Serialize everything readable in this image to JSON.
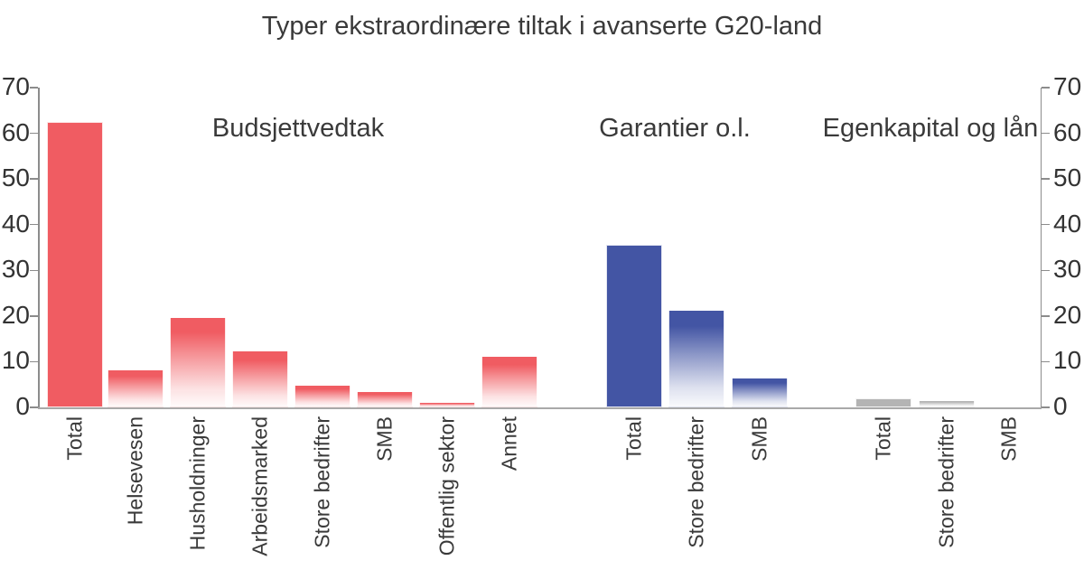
{
  "chart_data": {
    "type": "bar",
    "title": "Typer ekstraordinære tiltak i avanserte G20-land",
    "xlabel": "",
    "ylabel": "",
    "ylim": [
      0,
      70
    ],
    "yticks": [
      0,
      10,
      20,
      30,
      40,
      50,
      60,
      70
    ],
    "y_axis_sides": [
      "left",
      "right"
    ],
    "grid": false,
    "legend": "none",
    "bar_style_note": "Bars labelled Total are solid; all other bars fade from group color at top to white at bottom",
    "groups": [
      {
        "label": "Budsjettvedtak",
        "color": "#F05C62",
        "bars": [
          {
            "category": "Total",
            "value": 62.5,
            "solid": true
          },
          {
            "category": "Helsevesen",
            "value": 8.3,
            "solid": false
          },
          {
            "category": "Husholdninger",
            "value": 19.8,
            "solid": false
          },
          {
            "category": "Arbeidsmarked",
            "value": 12.5,
            "solid": false
          },
          {
            "category": "Store bedrifter",
            "value": 5,
            "solid": false
          },
          {
            "category": "SMB",
            "value": 3.6,
            "solid": false
          },
          {
            "category": "Offentlig sektor",
            "value": 1.1,
            "solid": false
          },
          {
            "category": "Annet",
            "value": 11.3,
            "solid": false
          }
        ]
      },
      {
        "label": "Garantier o.l.",
        "color": "#4355A4",
        "bars": [
          {
            "category": "Total",
            "value": 35.5,
            "solid": true
          },
          {
            "category": "Store bedrifter",
            "value": 21.4,
            "solid": false
          },
          {
            "category": "SMB",
            "value": 6.5,
            "solid": false
          }
        ]
      },
      {
        "label": "Egenkapital og lån",
        "color": "#B4B4B4",
        "bars": [
          {
            "category": "Total",
            "value": 1.9,
            "solid": true
          },
          {
            "category": "Store bedrifter",
            "value": 1.5,
            "solid": false
          },
          {
            "category": "SMB",
            "value": 0,
            "solid": false
          }
        ]
      }
    ],
    "colors": {
      "axis": "#8C8C8C",
      "baseline": "#A9A9A9",
      "text": "#3A3A3A"
    }
  }
}
